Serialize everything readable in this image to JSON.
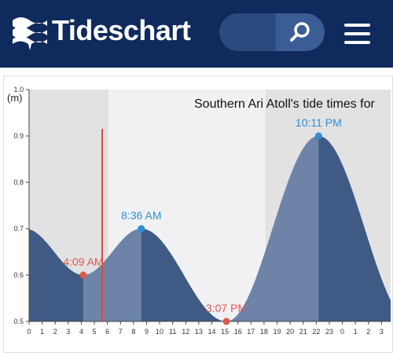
{
  "header": {
    "brand": "Tideschart"
  },
  "chart_data": {
    "type": "area",
    "title": "Southern Ari Atoll's tide times for",
    "y_label": "(m)",
    "x": [
      4.15,
      8.6,
      15.117,
      22.183
    ],
    "values": [
      0.6,
      0.7,
      0.5,
      0.9
    ],
    "value_labels": [
      "4:09 AM",
      "8:36 AM",
      "3:07 PM",
      "10:11 PM"
    ],
    "low_color": "#e0574a",
    "high_color": "#2d8fd5",
    "fill_color": "#3f5b85",
    "rising_fill_color": "#6d84a8",
    "night_color": "#e2e2e2",
    "day_color": "#f1f1f4",
    "daylight": [
      6.08,
      18.1
    ],
    "current_time": 5.6,
    "current_color": "#e04a3c",
    "xlim": [
      0,
      27.7
    ],
    "ylim": [
      0.5,
      1
    ],
    "xticks": [
      0,
      1,
      2,
      3,
      4,
      5,
      6,
      7,
      8,
      9,
      10,
      11,
      12,
      13,
      14,
      15,
      16,
      17,
      18,
      19,
      20,
      21,
      22,
      23,
      {
        "value": 24,
        "label": "0"
      },
      {
        "value": 25,
        "label": "1"
      },
      {
        "value": 26,
        "label": "2"
      },
      {
        "value": 27,
        "label": "3"
      }
    ],
    "yticks": [
      0.5,
      0.6,
      0.7,
      0.8,
      0.9,
      {
        "value": 1,
        "label": "1.0"
      }
    ]
  }
}
